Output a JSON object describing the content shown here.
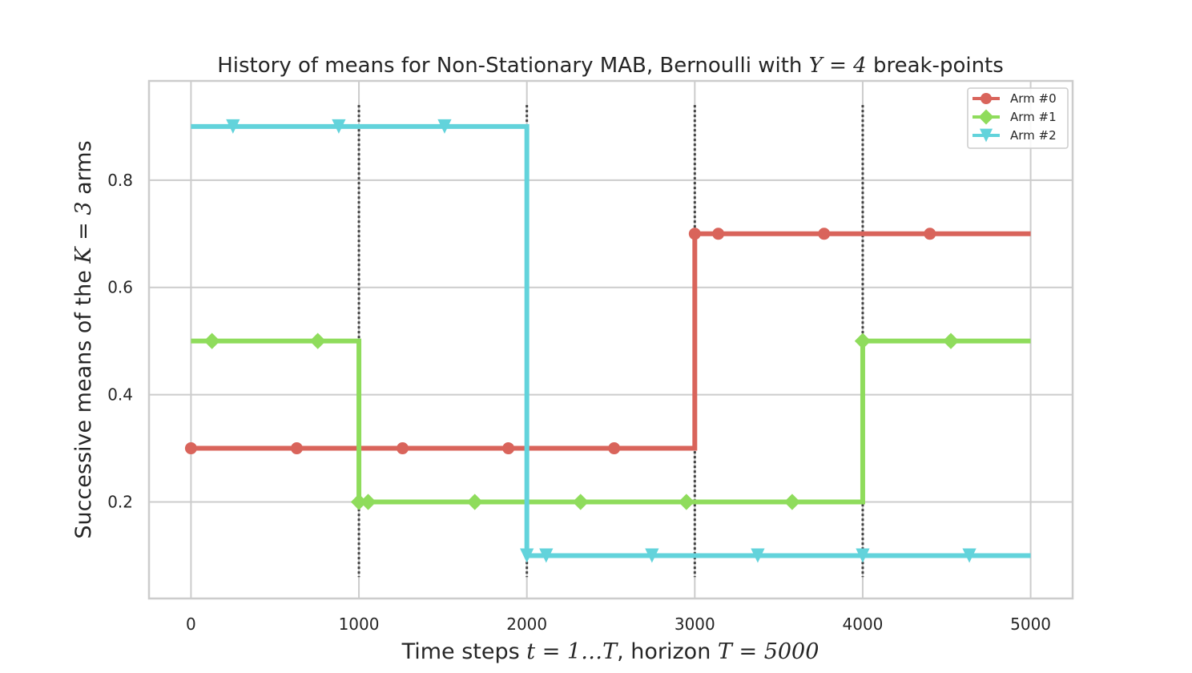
{
  "chart_data": {
    "type": "line",
    "title": "History of means for Non-Stationary MAB, Bernoulli with Υ = 4 break-points",
    "title_parts": {
      "prefix": "History of means for Non-Stationary MAB, Bernoulli with ",
      "math": "Υ = 4",
      "suffix": " break-points"
    },
    "xlabel": "Time steps t = 1…T, horizon T = 5000",
    "xlabel_parts": {
      "p1": "Time steps ",
      "m1": "t = 1…T",
      "p2": ", horizon ",
      "m2": "T = 5000"
    },
    "ylabel": "Successive means of the K = 3 arms",
    "ylabel_parts": {
      "p1": "Successive means of the ",
      "m1": "K = 3",
      "p2": " arms"
    },
    "xlim": [
      -250,
      5250
    ],
    "ylim": [
      0.02,
      0.985
    ],
    "xticks": [
      0,
      1000,
      2000,
      3000,
      4000,
      5000
    ],
    "yticks": [
      0.2,
      0.4,
      0.6,
      0.8
    ],
    "ytick_labels": [
      "0.2",
      "0.4",
      "0.6",
      "0.8"
    ],
    "grid": true,
    "legend_position": "top-right",
    "breakpoints": [
      1000,
      2000,
      3000,
      4000
    ],
    "breakpoint_ylim": [
      0.06,
      0.94
    ],
    "series": [
      {
        "name": "Arm #0",
        "color": "#d9645b",
        "marker": "circle",
        "steps": [
          [
            0,
            0.3
          ],
          [
            3000,
            0.7
          ],
          [
            5000,
            0.7
          ]
        ],
        "markers_x": [
          0,
          630,
          1260,
          1890,
          2520,
          3000,
          3140,
          3770,
          4400
        ]
      },
      {
        "name": "Arm #1",
        "color": "#8fdc5c",
        "marker": "diamond",
        "steps": [
          [
            0,
            0.5
          ],
          [
            1000,
            0.2
          ],
          [
            4000,
            0.5
          ],
          [
            5000,
            0.5
          ]
        ],
        "markers_x": [
          125,
          755,
          1000,
          1055,
          1690,
          2320,
          2950,
          3580,
          4000,
          4525
        ]
      },
      {
        "name": "Arm #2",
        "color": "#62d3db",
        "marker": "triangle-down",
        "steps": [
          [
            0,
            0.9
          ],
          [
            2000,
            0.1
          ],
          [
            5000,
            0.1
          ]
        ],
        "markers_x": [
          250,
          880,
          1510,
          2000,
          2115,
          2745,
          3375,
          4000,
          4635
        ]
      }
    ]
  }
}
